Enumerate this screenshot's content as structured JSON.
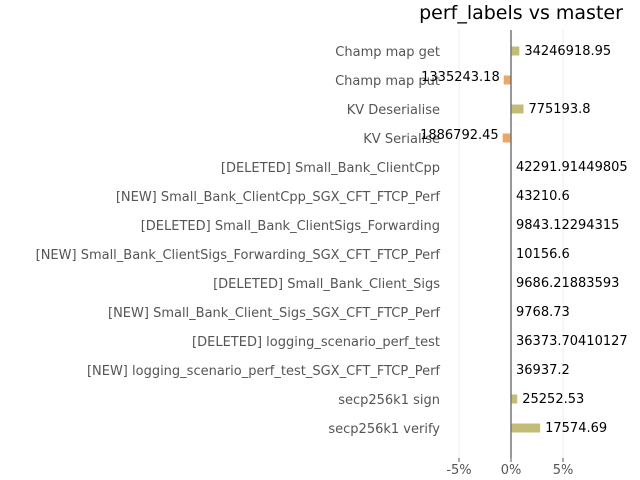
{
  "chart_data": {
    "type": "bar",
    "orientation": "horizontal",
    "title": "perf_labels vs master",
    "xlabel": "",
    "ylabel": "",
    "xlim": [
      -6.5,
      10
    ],
    "xticks": [
      -5,
      0,
      5
    ],
    "xtick_labels": [
      "-5%",
      "0%",
      "5%"
    ],
    "grid": true,
    "categories": [
      "Champ map get",
      "Champ map put",
      "KV Deserialise",
      "KV Serialise",
      "[DELETED] Small_Bank_ClientCpp",
      "[NEW] Small_Bank_ClientCpp_SGX_CFT_FTCP_Perf",
      "[DELETED] Small_Bank_ClientSigs_Forwarding",
      "[NEW] Small_Bank_ClientSigs_Forwarding_SGX_CFT_FTCP_Perf",
      "[DELETED] Small_Bank_Client_Sigs",
      "[NEW] Small_Bank_Client_Sigs_SGX_CFT_FTCP_Perf",
      "[DELETED] logging_scenario_perf_test",
      "[NEW] logging_scenario_perf_test_SGX_CFT_FTCP_Perf",
      "secp256k1 sign",
      "secp256k1 verify"
    ],
    "values": [
      0.8,
      -0.7,
      1.2,
      -0.8,
      0,
      0,
      0,
      0,
      0,
      0,
      0,
      0,
      0.6,
      2.8
    ],
    "value_labels": [
      "34246918.95",
      "1335243.18",
      "775193.8",
      "1886792.45",
      "42291.91449805",
      "43210.6",
      "9843.12294315",
      "10156.6",
      "9686.21883593",
      "9768.73",
      "36373.70410127",
      "36937.2",
      "25252.53",
      "17574.69"
    ],
    "colors": {
      "positive": "#c3bc77",
      "negative": "#e9a866",
      "zero_line": "#777777",
      "grid": "#eeeeee"
    }
  }
}
